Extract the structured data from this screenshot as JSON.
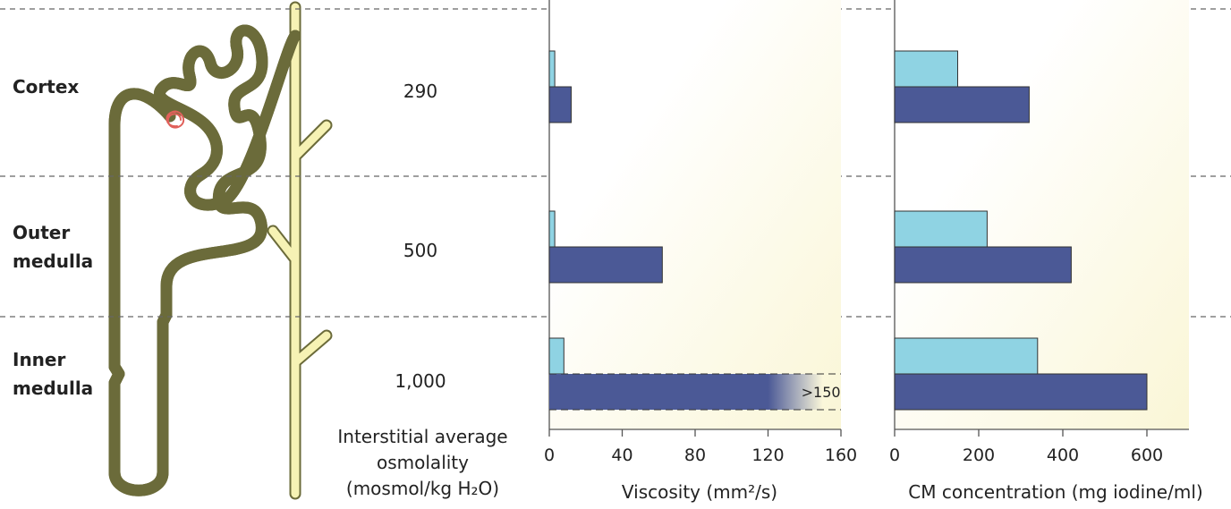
{
  "zones": [
    "Cortex",
    "Outer medulla",
    "Inner medulla"
  ],
  "osmolality": {
    "label": "Interstitial average osmolality (mosmol/kg H₂O)",
    "values": [
      "290",
      "500",
      "1,000"
    ]
  },
  "chart_data": [
    {
      "type": "hbar",
      "xlabel": "Viscosity (mm²/s)",
      "categories": [
        null,
        null,
        null
      ],
      "xlim": [
        0,
        160
      ],
      "xticks": [
        0,
        40,
        80,
        120,
        160
      ],
      "series": [
        {
          "color": "#8fd3e3",
          "values": [
            3,
            3,
            8
          ]
        },
        {
          "color": "#4b5996",
          "values": [
            12,
            62,
            150
          ],
          "value_labels": [
            null,
            null,
            ">150"
          ]
        }
      ]
    },
    {
      "type": "hbar",
      "xlabel": "CM concentration (mg iodine/ml)",
      "categories": [
        null,
        null,
        null
      ],
      "xlim": [
        0,
        700
      ],
      "xticks": [
        0,
        200,
        400,
        600
      ],
      "series": [
        {
          "color": "#8fd3e3",
          "values": [
            150,
            220,
            340
          ]
        },
        {
          "color": "#4b5996",
          "values": [
            320,
            420,
            600
          ]
        }
      ]
    }
  ]
}
